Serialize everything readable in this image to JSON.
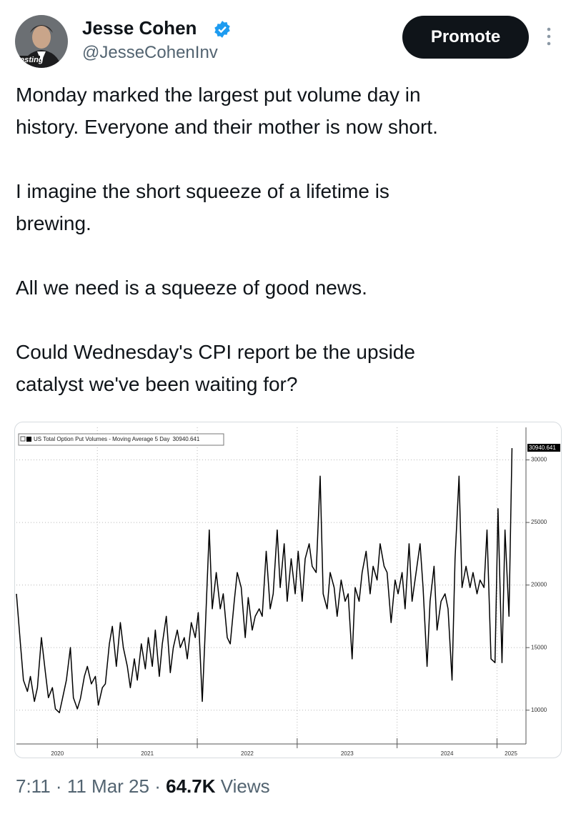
{
  "header": {
    "avatar_label": "vesting",
    "name": "Jesse Cohen",
    "handle": "@JesseCohenInv",
    "button": "Promote"
  },
  "tweet": {
    "paragraphs": [
      [
        "Monday marked the largest put volume day in",
        "history. Everyone and their mother is now short."
      ],
      [
        "I imagine the short squeeze of a lifetime is",
        "brewing."
      ],
      [
        "All we need is a squeeze of good news."
      ],
      [
        "Could Wednesday's CPI report be the upside",
        "catalyst we've been waiting for?"
      ]
    ]
  },
  "chart_data": {
    "type": "line",
    "x": [
      2020.19,
      2020.23,
      2020.26,
      2020.3,
      2020.33,
      2020.37,
      2020.4,
      2020.44,
      2020.48,
      2020.51,
      2020.55,
      2020.58,
      2020.62,
      2020.65,
      2020.69,
      2020.73,
      2020.76,
      2020.8,
      2020.83,
      2020.87,
      2020.9,
      2020.94,
      2020.98,
      2021.01,
      2021.05,
      2021.08,
      2021.12,
      2021.15,
      2021.19,
      2021.23,
      2021.26,
      2021.3,
      2021.33,
      2021.37,
      2021.4,
      2021.44,
      2021.48,
      2021.51,
      2021.55,
      2021.58,
      2021.62,
      2021.65,
      2021.69,
      2021.73,
      2021.76,
      2021.8,
      2021.83,
      2021.87,
      2021.9,
      2021.94,
      2021.98,
      2022.01,
      2022.05,
      2022.08,
      2022.12,
      2022.15,
      2022.19,
      2022.23,
      2022.26,
      2022.3,
      2022.33,
      2022.37,
      2022.4,
      2022.44,
      2022.48,
      2022.51,
      2022.55,
      2022.58,
      2022.62,
      2022.65,
      2022.69,
      2022.73,
      2022.76,
      2022.8,
      2022.83,
      2022.87,
      2022.9,
      2022.94,
      2022.98,
      2023.01,
      2023.05,
      2023.08,
      2023.12,
      2023.15,
      2023.19,
      2023.23,
      2023.26,
      2023.3,
      2023.33,
      2023.37,
      2023.4,
      2023.44,
      2023.48,
      2023.51,
      2023.55,
      2023.58,
      2023.62,
      2023.65,
      2023.69,
      2023.73,
      2023.76,
      2023.8,
      2023.83,
      2023.87,
      2023.9,
      2023.94,
      2023.98,
      2024.01,
      2024.05,
      2024.08,
      2024.12,
      2024.15,
      2024.19,
      2024.23,
      2024.26,
      2024.3,
      2024.33,
      2024.37,
      2024.4,
      2024.44,
      2024.48,
      2024.51,
      2024.55,
      2024.58,
      2024.62,
      2024.65,
      2024.69,
      2024.73,
      2024.76,
      2024.8,
      2024.83,
      2024.87,
      2024.9,
      2024.94,
      2024.98,
      2025.01,
      2025.05,
      2025.08,
      2025.12,
      2025.15
    ],
    "series": [
      {
        "name": "US Total Option Put Volumes - Moving Average 5 Day",
        "color": "#000000",
        "values": [
          19300,
          15300,
          12400,
          11500,
          12700,
          10700,
          11800,
          15800,
          13000,
          11000,
          11800,
          10100,
          9800,
          10900,
          12400,
          15000,
          11000,
          10100,
          10900,
          12700,
          13500,
          12100,
          12700,
          10400,
          11800,
          12100,
          15300,
          16700,
          13500,
          17000,
          15000,
          13500,
          11800,
          14100,
          12400,
          15300,
          13300,
          15800,
          13500,
          16400,
          12700,
          15300,
          17500,
          13000,
          15000,
          16400,
          15000,
          15800,
          14100,
          17000,
          15800,
          17800,
          10700,
          16400,
          24400,
          18100,
          21000,
          18100,
          19300,
          15800,
          15300,
          18700,
          21000,
          19800,
          15800,
          19000,
          16400,
          17500,
          18100,
          17500,
          22700,
          18100,
          19300,
          24400,
          19800,
          23300,
          18700,
          22100,
          19300,
          22700,
          18700,
          22100,
          23300,
          21500,
          21000,
          28700,
          19300,
          18100,
          21000,
          19800,
          17500,
          20400,
          18700,
          19300,
          14100,
          19800,
          18700,
          21000,
          22700,
          19300,
          21500,
          20400,
          23300,
          21500,
          21000,
          17000,
          20400,
          19300,
          21000,
          18100,
          23300,
          18700,
          21000,
          23300,
          19800,
          13500,
          18700,
          21500,
          16400,
          18700,
          19300,
          18100,
          12400,
          22100,
          28700,
          19800,
          21500,
          19800,
          21000,
          19300,
          20400,
          19800,
          24400,
          14100,
          13800,
          26100,
          13800,
          24400,
          17500,
          30940.641
        ]
      }
    ],
    "xlim": [
      2020.19,
      2025.29
    ],
    "xticks": [
      {
        "value": 2020.6,
        "label": "2020"
      },
      {
        "value": 2021.5,
        "label": "2021"
      },
      {
        "value": 2022.5,
        "label": "2022"
      },
      {
        "value": 2023.5,
        "label": "2023"
      },
      {
        "value": 2024.5,
        "label": "2024"
      },
      {
        "value": 2025.14,
        "label": "2025"
      }
    ],
    "year_start_ticks": [
      2021,
      2022,
      2023,
      2024,
      2025
    ],
    "ylim": [
      7300,
      32600
    ],
    "yticks": [
      10000,
      15000,
      20000,
      25000,
      30000
    ],
    "grid": true,
    "y_axis_side": "right"
  },
  "footer": {
    "time": "7:11",
    "separator": "·",
    "date": "11 Mar 25",
    "views_count": "64.7K",
    "views_label": "Views"
  }
}
